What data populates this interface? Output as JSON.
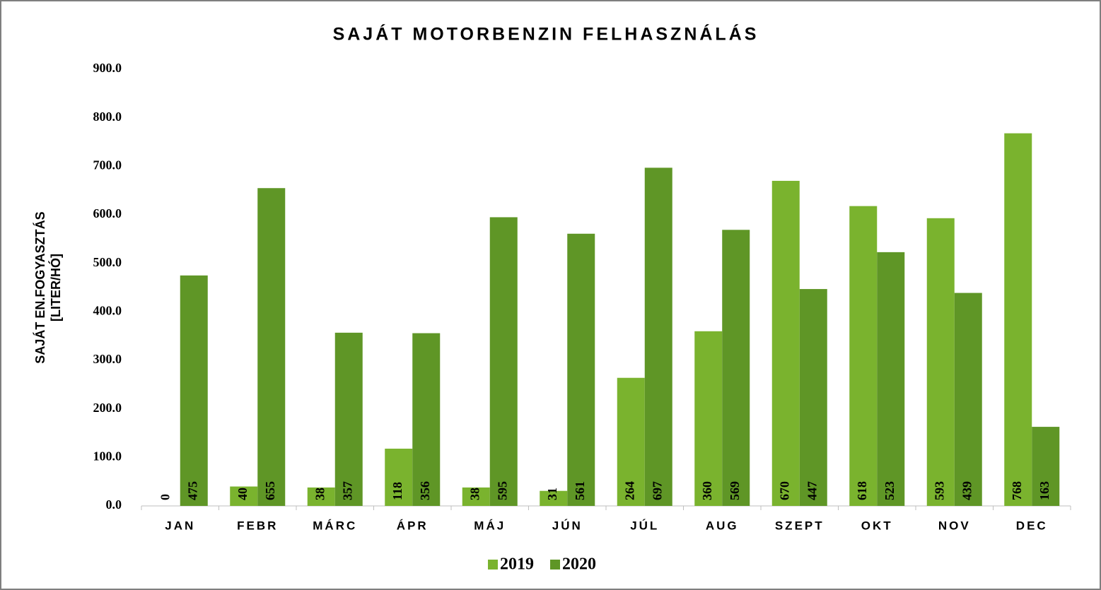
{
  "chart_data": {
    "type": "bar",
    "title": "SAJÁT MOTORBENZIN FELHASZNÁLÁS",
    "ylabel": [
      "SAJÁT EN.FOGYASZTÁS",
      "[LITER/HÓ]"
    ],
    "categories": [
      "JAN",
      "FEBR",
      "MÁRC",
      "ÁPR",
      "MÁJ",
      "JÚN",
      "JÚL",
      "AUG",
      "SZEPT",
      "OKT",
      "NOV",
      "DEC"
    ],
    "series": [
      {
        "name": "2019",
        "color": "#7ab32e",
        "values": [
          0,
          40,
          38,
          118,
          38,
          31,
          264,
          360,
          670,
          618,
          593,
          768
        ]
      },
      {
        "name": "2020",
        "color": "#5f9626",
        "values": [
          475,
          655,
          357,
          356,
          595,
          561,
          697,
          569,
          447,
          523,
          439,
          163
        ]
      }
    ],
    "ylim": [
      0,
      900
    ],
    "yticks": [
      {
        "value": 0,
        "label": "0.0"
      },
      {
        "value": 100,
        "label": "100.0"
      },
      {
        "value": 200,
        "label": "200.0"
      },
      {
        "value": 300,
        "label": "300.0"
      },
      {
        "value": 400,
        "label": "400.0"
      },
      {
        "value": 500,
        "label": "500.0"
      },
      {
        "value": 600,
        "label": "600.0"
      },
      {
        "value": 700,
        "label": "700.0"
      },
      {
        "value": 800,
        "label": "800.0"
      },
      {
        "value": 900,
        "label": "900.0"
      }
    ],
    "grid": false,
    "legend": "bottom"
  }
}
